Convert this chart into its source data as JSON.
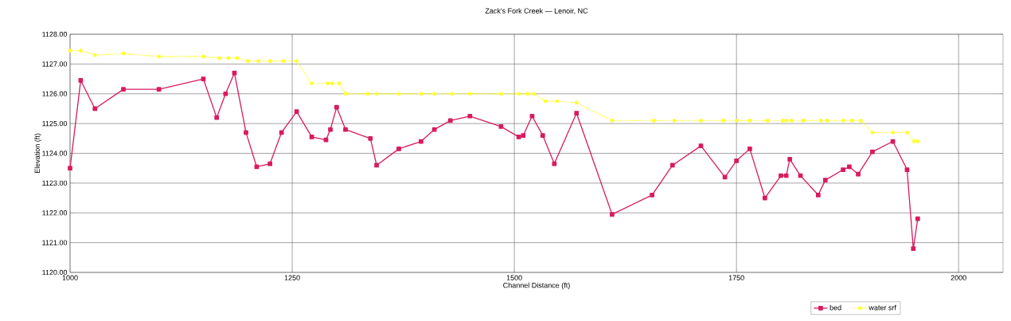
{
  "chart_data": {
    "type": "line",
    "title": "Zack's Fork Creek — Lenoir, NC",
    "xlabel": "Channel Distance (ft)",
    "ylabel": "Elevation (ft)",
    "xlim": [
      1000,
      2050
    ],
    "xticks": [
      1000,
      1250,
      1500,
      1750,
      2000
    ],
    "ylim": [
      1120,
      1128
    ],
    "yticks": [
      {
        "value": 1120,
        "label": "1120.00"
      },
      {
        "value": 1121,
        "label": "1121.00"
      },
      {
        "value": 1122,
        "label": "1122.00"
      },
      {
        "value": 1123,
        "label": "1123.00"
      },
      {
        "value": 1124,
        "label": "1124.00"
      },
      {
        "value": 1125,
        "label": "1125.00"
      },
      {
        "value": 1126,
        "label": "1126.00"
      },
      {
        "value": 1127,
        "label": "1127.00"
      },
      {
        "value": 1128,
        "label": "1128.00"
      }
    ],
    "grid": true,
    "legend": "bottom right",
    "series": [
      {
        "name": "bed",
        "color": "#d81b60",
        "marker": "square",
        "line_style": "solid",
        "x": [
          1000,
          1012,
          1028,
          1060,
          1100,
          1150,
          1165,
          1175,
          1185,
          1198,
          1210,
          1225,
          1238,
          1255,
          1272,
          1288,
          1293,
          1300,
          1310,
          1338,
          1345,
          1370,
          1395,
          1410,
          1428,
          1450,
          1485,
          1505,
          1510,
          1520,
          1532,
          1545,
          1570,
          1610,
          1655,
          1678,
          1710,
          1737,
          1750,
          1765,
          1782,
          1800,
          1806,
          1810,
          1822,
          1842,
          1850,
          1870,
          1877,
          1887,
          1903,
          1926,
          1942,
          1949,
          1954
        ],
        "values": [
          1123.5,
          1126.45,
          1125.5,
          1126.15,
          1126.15,
          1126.5,
          1125.2,
          1126.0,
          1126.7,
          1124.7,
          1123.55,
          1123.65,
          1124.7,
          1125.4,
          1124.55,
          1124.45,
          1124.8,
          1125.55,
          1124.8,
          1124.5,
          1123.6,
          1124.15,
          1124.4,
          1124.8,
          1125.1,
          1125.25,
          1124.9,
          1124.55,
          1124.6,
          1125.25,
          1124.6,
          1123.65,
          1125.35,
          1121.95,
          1122.6,
          1123.6,
          1124.25,
          1123.2,
          1123.75,
          1124.15,
          1122.5,
          1123.25,
          1123.25,
          1123.8,
          1123.25,
          1122.6,
          1123.1,
          1123.45,
          1123.55,
          1123.3,
          1124.05,
          1124.4,
          1123.45,
          1120.8,
          1121.8
        ]
      },
      {
        "name": "water srf",
        "color": "#ffff33",
        "marker": "circle",
        "line_style": "dotted",
        "x": [
          1000,
          1012,
          1028,
          1060,
          1100,
          1150,
          1168,
          1178,
          1188,
          1200,
          1212,
          1225,
          1240,
          1255,
          1272,
          1290,
          1295,
          1303,
          1310,
          1335,
          1345,
          1370,
          1395,
          1410,
          1430,
          1450,
          1485,
          1505,
          1515,
          1522,
          1535,
          1548,
          1570,
          1610,
          1657,
          1680,
          1710,
          1735,
          1750,
          1765,
          1785,
          1802,
          1806,
          1812,
          1825,
          1845,
          1852,
          1870,
          1880,
          1890,
          1903,
          1926,
          1942,
          1950,
          1954
        ],
        "values": [
          1127.45,
          1127.45,
          1127.3,
          1127.35,
          1127.25,
          1127.25,
          1127.2,
          1127.2,
          1127.2,
          1127.1,
          1127.1,
          1127.1,
          1127.1,
          1127.1,
          1126.35,
          1126.35,
          1126.35,
          1126.35,
          1126.0,
          1126.0,
          1126.0,
          1126.0,
          1126.0,
          1126.0,
          1126.0,
          1126.0,
          1126.0,
          1126.0,
          1126.0,
          1126.0,
          1125.75,
          1125.75,
          1125.7,
          1125.1,
          1125.1,
          1125.1,
          1125.1,
          1125.1,
          1125.1,
          1125.1,
          1125.1,
          1125.1,
          1125.1,
          1125.1,
          1125.1,
          1125.1,
          1125.1,
          1125.1,
          1125.1,
          1125.1,
          1124.7,
          1124.7,
          1124.7,
          1124.4,
          1124.4
        ]
      }
    ]
  }
}
